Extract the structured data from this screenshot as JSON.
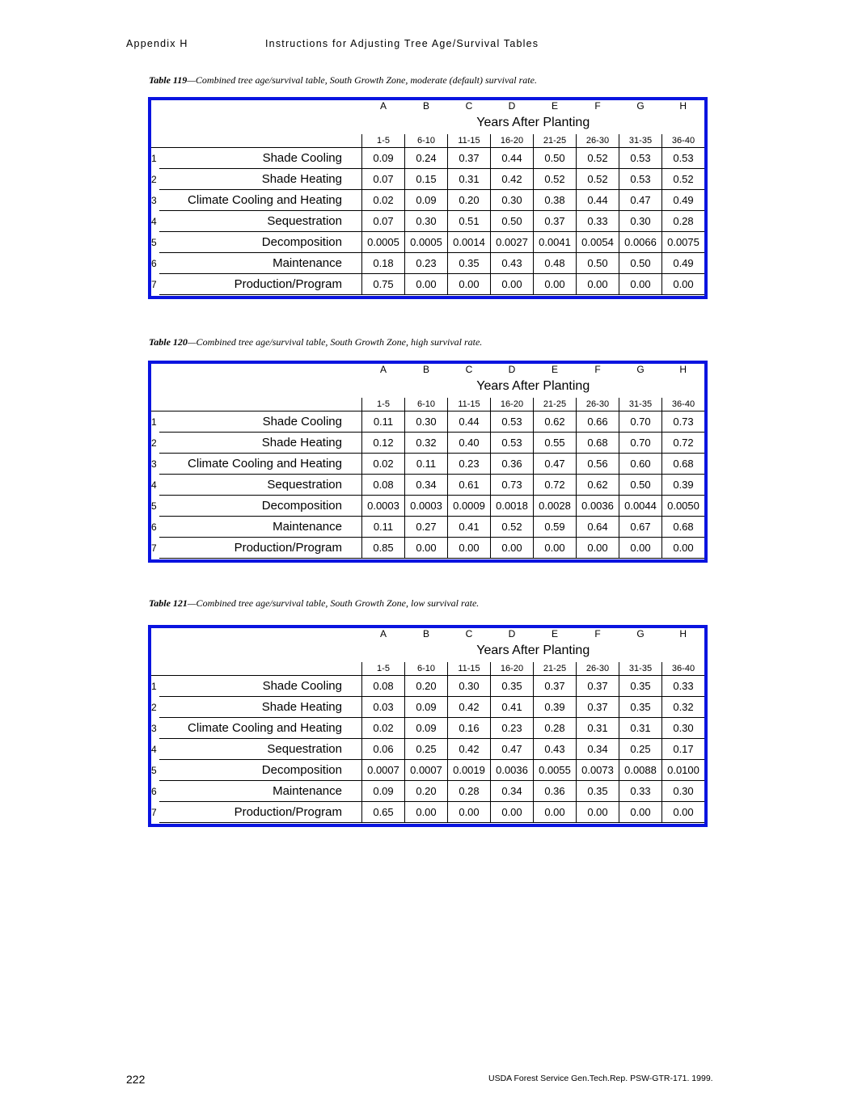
{
  "header": {
    "left": "Appendix H",
    "title": "Instructions for Adjusting Tree Age/Survival Tables"
  },
  "column_letters": [
    "A",
    "B",
    "C",
    "D",
    "E",
    "F",
    "G",
    "H"
  ],
  "years_label": "Years After Planting",
  "year_ranges": [
    "1-5",
    "6-10",
    "11-15",
    "16-20",
    "21-25",
    "26-30",
    "31-35",
    "36-40"
  ],
  "row_numbers": [
    "1",
    "2",
    "3",
    "4",
    "5",
    "6",
    "7"
  ],
  "row_labels": [
    "Shade Cooling",
    "Shade Heating",
    "Climate Cooling and Heating",
    "Sequestration",
    "Decomposition",
    "Maintenance",
    "Production/Program"
  ],
  "tables": [
    {
      "number": "Table 119",
      "caption": "—Combined tree age/survival table, South Growth Zone, moderate (default) survival rate.",
      "rows": [
        [
          "0.09",
          "0.24",
          "0.37",
          "0.44",
          "0.50",
          "0.52",
          "0.53",
          "0.53"
        ],
        [
          "0.07",
          "0.15",
          "0.31",
          "0.42",
          "0.52",
          "0.52",
          "0.53",
          "0.52"
        ],
        [
          "0.02",
          "0.09",
          "0.20",
          "0.30",
          "0.38",
          "0.44",
          "0.47",
          "0.49"
        ],
        [
          "0.07",
          "0.30",
          "0.51",
          "0.50",
          "0.37",
          "0.33",
          "0.30",
          "0.28"
        ],
        [
          "0.0005",
          "0.0005",
          "0.0014",
          "0.0027",
          "0.0041",
          "0.0054",
          "0.0066",
          "0.0075"
        ],
        [
          "0.18",
          "0.23",
          "0.35",
          "0.43",
          "0.48",
          "0.50",
          "0.50",
          "0.49"
        ],
        [
          "0.75",
          "0.00",
          "0.00",
          "0.00",
          "0.00",
          "0.00",
          "0.00",
          "0.00"
        ]
      ]
    },
    {
      "number": "Table 120",
      "caption": "—Combined tree age/survival table, South Growth Zone, high survival rate.",
      "rows": [
        [
          "0.11",
          "0.30",
          "0.44",
          "0.53",
          "0.62",
          "0.66",
          "0.70",
          "0.73"
        ],
        [
          "0.12",
          "0.32",
          "0.40",
          "0.53",
          "0.55",
          "0.68",
          "0.70",
          "0.72"
        ],
        [
          "0.02",
          "0.11",
          "0.23",
          "0.36",
          "0.47",
          "0.56",
          "0.60",
          "0.68"
        ],
        [
          "0.08",
          "0.34",
          "0.61",
          "0.73",
          "0.72",
          "0.62",
          "0.50",
          "0.39"
        ],
        [
          "0.0003",
          "0.0003",
          "0.0009",
          "0.0018",
          "0.0028",
          "0.0036",
          "0.0044",
          "0.0050"
        ],
        [
          "0.11",
          "0.27",
          "0.41",
          "0.52",
          "0.59",
          "0.64",
          "0.67",
          "0.68"
        ],
        [
          "0.85",
          "0.00",
          "0.00",
          "0.00",
          "0.00",
          "0.00",
          "0.00",
          "0.00"
        ]
      ]
    },
    {
      "number": "Table 121",
      "caption": "—Combined tree age/survival table, South Growth Zone, low survival rate.",
      "rows": [
        [
          "0.08",
          "0.20",
          "0.30",
          "0.35",
          "0.37",
          "0.37",
          "0.35",
          "0.33"
        ],
        [
          "0.03",
          "0.09",
          "0.42",
          "0.41",
          "0.39",
          "0.37",
          "0.35",
          "0.32"
        ],
        [
          "0.02",
          "0.09",
          "0.16",
          "0.23",
          "0.28",
          "0.31",
          "0.31",
          "0.30"
        ],
        [
          "0.06",
          "0.25",
          "0.42",
          "0.47",
          "0.43",
          "0.34",
          "0.25",
          "0.17"
        ],
        [
          "0.0007",
          "0.0007",
          "0.0019",
          "0.0036",
          "0.0055",
          "0.0073",
          "0.0088",
          "0.0100"
        ],
        [
          "0.09",
          "0.20",
          "0.28",
          "0.34",
          "0.36",
          "0.35",
          "0.33",
          "0.30"
        ],
        [
          "0.65",
          "0.00",
          "0.00",
          "0.00",
          "0.00",
          "0.00",
          "0.00",
          "0.00"
        ]
      ]
    }
  ],
  "footer": {
    "page_number": "222",
    "citation": "USDA Forest Service Gen.Tech.Rep. PSW-GTR-171. 1999."
  }
}
